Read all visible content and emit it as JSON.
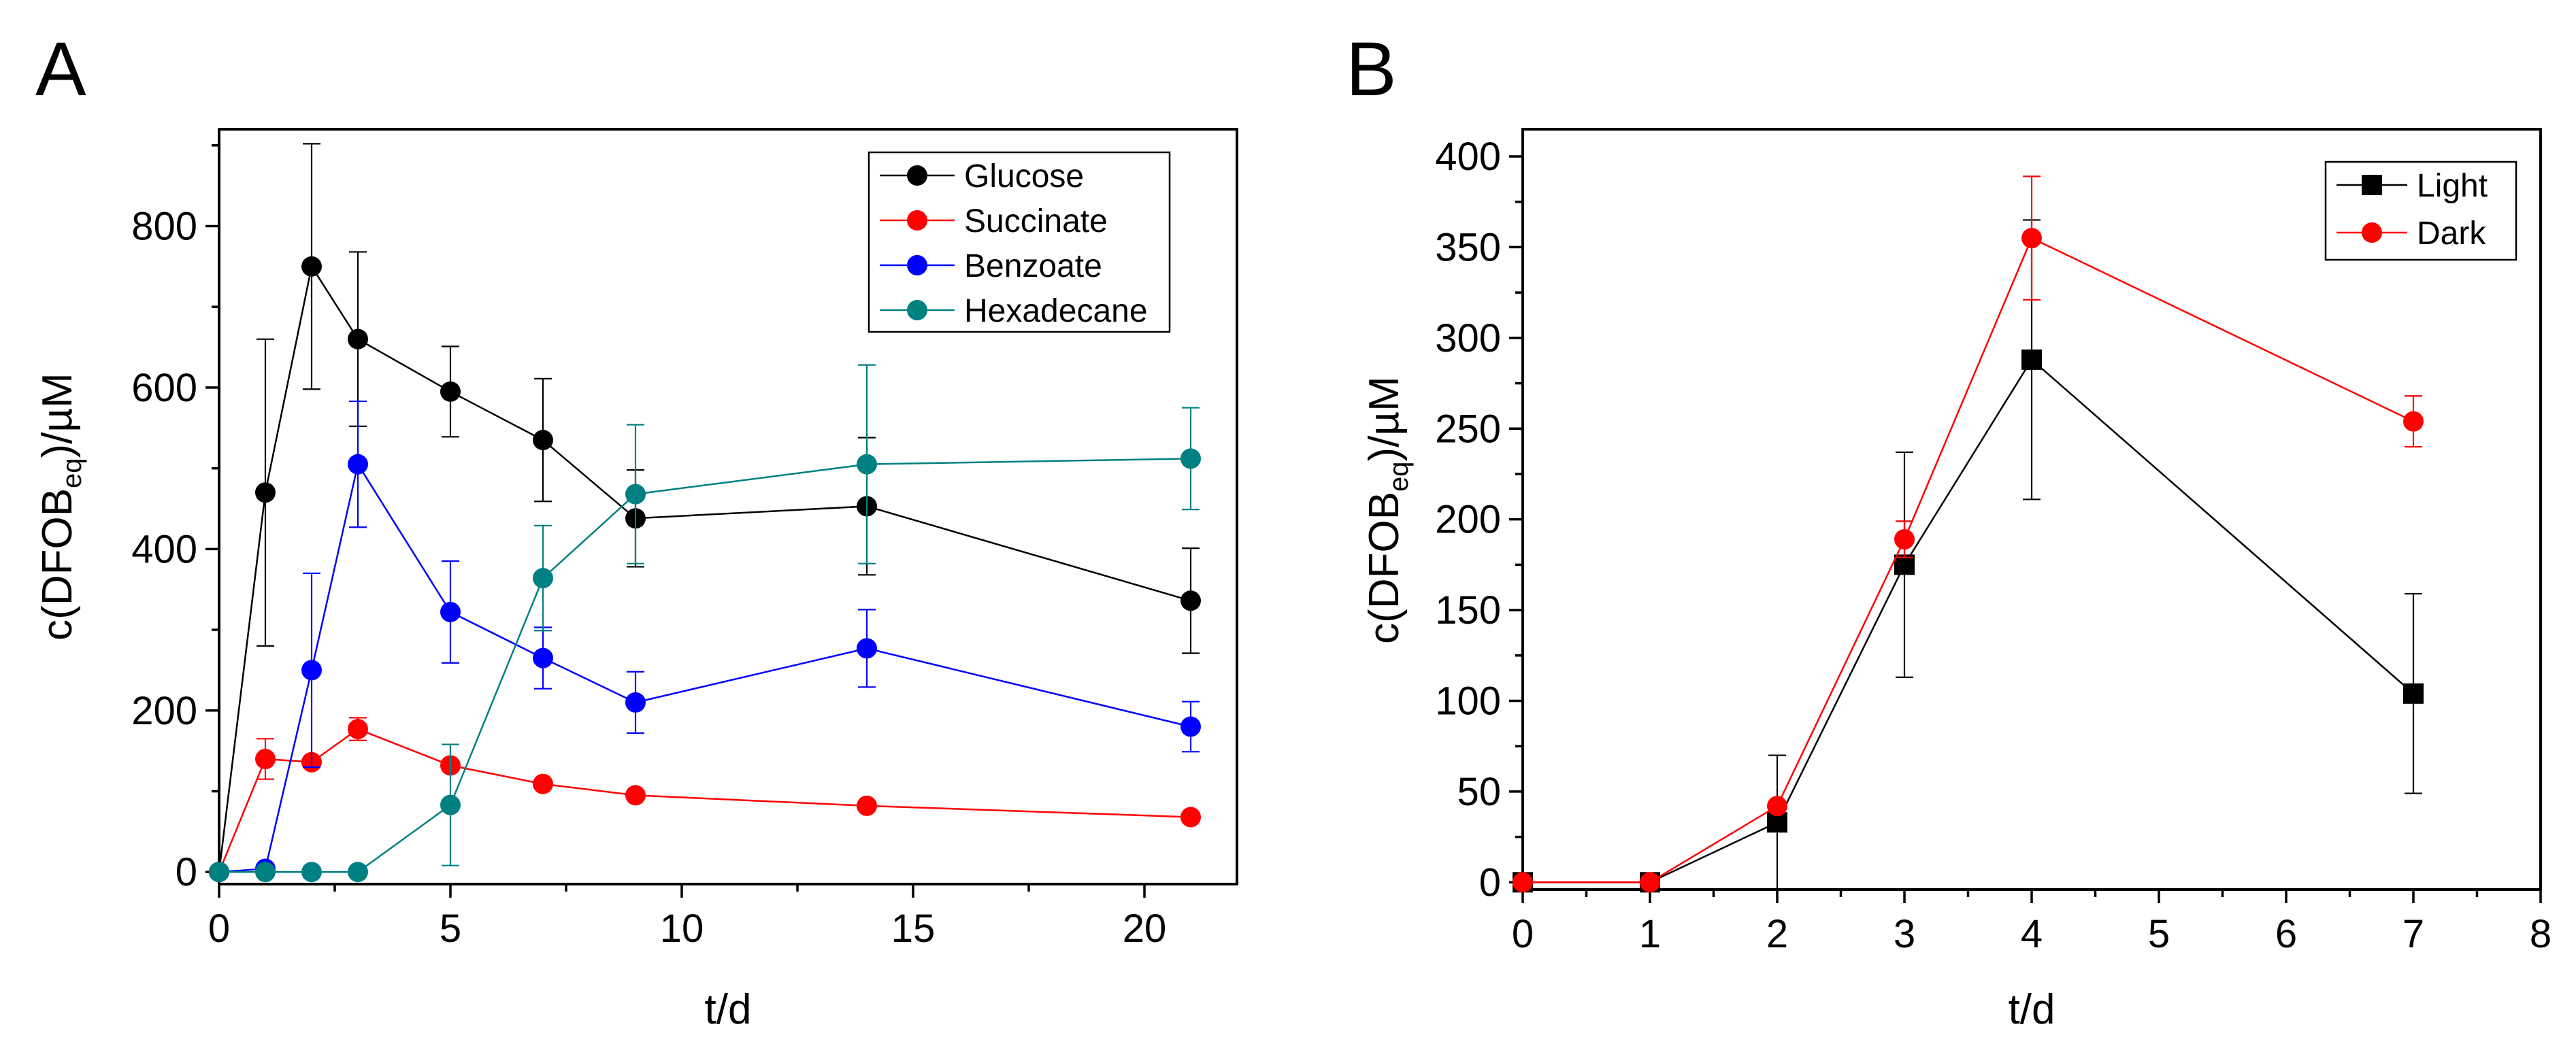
{
  "chart_data": [
    {
      "panel_label": "A",
      "type": "line",
      "title": "",
      "xlabel": "t/d",
      "ylabel": {
        "main": "c(DFOB",
        "subscript": "eq",
        "suffix": ")/µM"
      },
      "xlim": [
        0,
        22
      ],
      "ylim": [
        -15,
        920
      ],
      "xticks": [
        0,
        5,
        10,
        15,
        20
      ],
      "yticks": [
        0,
        200,
        400,
        600,
        800
      ],
      "x_minor_step": 2.5,
      "y_minor_step": 100,
      "grid": false,
      "legend_position": "top-right",
      "marker": "circle",
      "series": [
        {
          "name": "Glucose",
          "color": "#000000",
          "x": [
            0,
            1,
            2,
            3,
            5,
            7,
            9,
            14,
            21
          ],
          "y": [
            0,
            470,
            750,
            660,
            595,
            535,
            438,
            453,
            336
          ],
          "err": [
            0,
            190,
            152,
            108,
            56,
            76,
            60,
            85,
            65
          ]
        },
        {
          "name": "Succinate",
          "color": "#ff0000",
          "x": [
            0,
            1,
            2,
            3,
            5,
            7,
            9,
            14,
            21
          ],
          "y": [
            0,
            140,
            136,
            177,
            132,
            109,
            95,
            82,
            68
          ],
          "err": [
            0,
            25,
            0,
            14,
            0,
            0,
            0,
            0,
            0
          ]
        },
        {
          "name": "Benzoate",
          "color": "#0000ff",
          "x": [
            0,
            1,
            2,
            3,
            5,
            7,
            9,
            14,
            21
          ],
          "y": [
            0,
            4,
            250,
            505,
            322,
            265,
            210,
            277,
            180
          ],
          "err": [
            0,
            0,
            120,
            78,
            63,
            38,
            38,
            48,
            31
          ]
        },
        {
          "name": "Hexadecane",
          "color": "#008080",
          "x": [
            0,
            1,
            2,
            3,
            5,
            7,
            9,
            14,
            21
          ],
          "y": [
            0,
            0,
            0,
            0,
            83,
            364,
            468,
            505,
            512
          ],
          "err": [
            0,
            0,
            0,
            0,
            75,
            65,
            86,
            123,
            63
          ]
        }
      ]
    },
    {
      "panel_label": "B",
      "type": "line",
      "title": "",
      "xlabel": "t/d",
      "ylabel": {
        "main": "c(DFOB",
        "subscript": "eq",
        "suffix": ")/µM"
      },
      "xlim": [
        0,
        8
      ],
      "ylim": [
        -4,
        415
      ],
      "xticks": [
        0,
        1,
        2,
        3,
        4,
        5,
        6,
        7,
        8
      ],
      "yticks": [
        0,
        50,
        100,
        150,
        200,
        250,
        300,
        350,
        400
      ],
      "x_minor_step": 0.5,
      "y_minor_step": 25,
      "grid": false,
      "legend_position": "top-right",
      "series": [
        {
          "name": "Light",
          "color": "#000000",
          "marker": "square",
          "x": [
            0,
            1,
            2,
            3,
            4,
            7
          ],
          "y": [
            0,
            0,
            33,
            175,
            288,
            104
          ],
          "err": [
            0,
            0,
            37,
            62,
            77,
            55
          ]
        },
        {
          "name": "Dark",
          "color": "#ff0000",
          "marker": "circle",
          "x": [
            0,
            1,
            2,
            3,
            4,
            7
          ],
          "y": [
            0,
            0,
            42,
            189,
            355,
            254
          ],
          "err": [
            0,
            0,
            0,
            10,
            34,
            14
          ]
        }
      ]
    }
  ]
}
